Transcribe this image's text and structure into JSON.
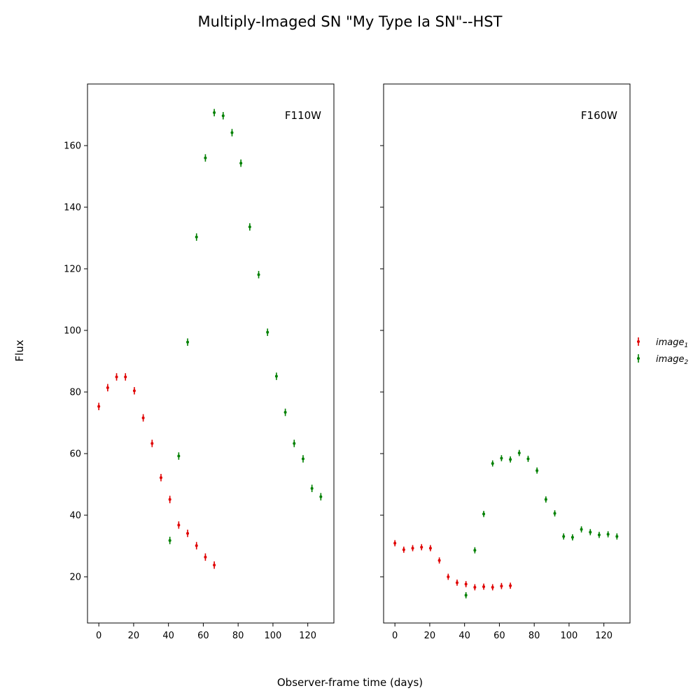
{
  "figure": {
    "title": "Multiply-Imaged SN \"My Type Ia SN\"--HST",
    "xlabel": "Observer-frame time (days)",
    "ylabel": "Flux"
  },
  "legend": {
    "placement": "right",
    "entries": [
      {
        "name": "image",
        "subscript": "1",
        "color": "#e00000"
      },
      {
        "name": "image",
        "subscript": "2",
        "color": "#008000"
      }
    ]
  },
  "chart_data": [
    {
      "type": "scatter",
      "panel_label": "F110W",
      "xlim": [
        -6.5,
        135
      ],
      "ylim": [
        5,
        180
      ],
      "xticks": [
        0,
        20,
        40,
        60,
        80,
        100,
        120
      ],
      "yticks": [
        20,
        40,
        60,
        80,
        100,
        120,
        140,
        160
      ],
      "grid": false,
      "series": [
        {
          "name": "image1",
          "color": "#e00000",
          "x": [
            0,
            5.1,
            10.2,
            15.3,
            20.4,
            25.5,
            30.6,
            35.7,
            40.8,
            45.9,
            51.0,
            56.1,
            61.2,
            66.3
          ],
          "y": [
            75.3,
            81.4,
            84.9,
            84.9,
            80.4,
            71.6,
            63.3,
            52.2,
            45.1,
            36.8,
            34.1,
            30.1,
            26.4,
            23.8
          ],
          "err": [
            1.2,
            1.2,
            1.2,
            1.2,
            1.2,
            1.2,
            1.2,
            1.2,
            1.2,
            1.2,
            1.2,
            1.2,
            1.2,
            1.2
          ]
        },
        {
          "name": "image2",
          "color": "#008000",
          "x": [
            40.8,
            45.9,
            51.0,
            56.1,
            61.2,
            66.3,
            71.4,
            76.5,
            81.6,
            86.7,
            91.8,
            96.9,
            102.0,
            107.1,
            112.2,
            117.3,
            122.4,
            127.5
          ],
          "y": [
            31.8,
            59.2,
            96.2,
            130.3,
            156.0,
            170.7,
            169.7,
            164.2,
            154.3,
            133.6,
            118.1,
            99.4,
            85.1,
            73.4,
            63.3,
            58.3,
            48.7,
            46.0
          ],
          "err": [
            1.2,
            1.2,
            1.2,
            1.2,
            1.2,
            1.2,
            1.2,
            1.2,
            1.2,
            1.2,
            1.2,
            1.2,
            1.2,
            1.2,
            1.2,
            1.2,
            1.2,
            1.2
          ]
        }
      ]
    },
    {
      "type": "scatter",
      "panel_label": "F160W",
      "xlim": [
        -6.5,
        135
      ],
      "ylim": [
        5,
        180
      ],
      "xticks": [
        0,
        20,
        40,
        60,
        80,
        100,
        120
      ],
      "yticks": [
        20,
        40,
        60,
        80,
        100,
        120,
        140,
        160
      ],
      "grid": false,
      "series": [
        {
          "name": "image1",
          "color": "#e00000",
          "x": [
            0,
            5.1,
            10.2,
            15.3,
            20.4,
            25.5,
            30.6,
            35.7,
            40.8,
            45.9,
            51.0,
            56.1,
            61.2,
            66.3
          ],
          "y": [
            30.9,
            28.8,
            29.3,
            29.6,
            29.3,
            25.3,
            20.0,
            18.1,
            17.6,
            16.6,
            16.8,
            16.6,
            17.0,
            17.1
          ],
          "err": [
            1.0,
            1.0,
            1.0,
            1.0,
            1.0,
            1.0,
            1.0,
            1.0,
            1.0,
            1.0,
            1.0,
            1.0,
            1.0,
            1.0
          ]
        },
        {
          "name": "image2",
          "color": "#008000",
          "x": [
            40.8,
            45.9,
            51.0,
            56.1,
            61.2,
            66.3,
            71.4,
            76.5,
            81.6,
            86.7,
            91.8,
            96.9,
            102.0,
            107.1,
            112.2,
            117.3,
            122.4,
            127.5
          ],
          "y": [
            14.0,
            28.6,
            40.4,
            56.8,
            58.5,
            58.1,
            60.2,
            58.3,
            54.5,
            45.1,
            40.6,
            33.1,
            32.8,
            35.4,
            34.5,
            33.6,
            33.8,
            33.1
          ],
          "err": [
            1.0,
            1.0,
            1.0,
            1.0,
            1.0,
            1.0,
            1.0,
            1.0,
            1.0,
            1.0,
            1.0,
            1.0,
            1.0,
            1.0,
            1.0,
            1.0,
            1.0,
            1.0
          ]
        }
      ]
    }
  ]
}
